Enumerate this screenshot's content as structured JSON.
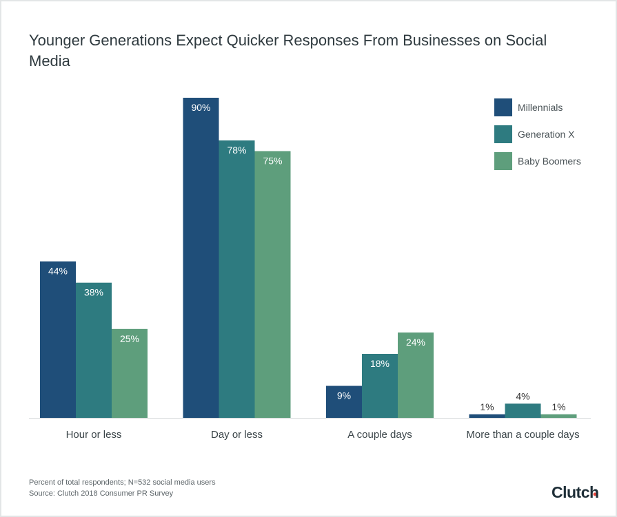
{
  "chart_data": {
    "type": "bar",
    "title": "Younger Generations Expect Quicker Responses From Businesses on Social Media",
    "categories": [
      "Hour or less",
      "Day or less",
      "A couple days",
      "More than a couple days"
    ],
    "series": [
      {
        "name": "Millennials",
        "color": "#1f4e79",
        "values": [
          44,
          90,
          9,
          1
        ]
      },
      {
        "name": "Generation X",
        "color": "#2e7b80",
        "values": [
          38,
          78,
          18,
          4
        ]
      },
      {
        "name": "Baby Boomers",
        "color": "#5e9e7c",
        "values": [
          25,
          75,
          24,
          1
        ]
      }
    ],
    "value_suffix": "%",
    "ylim": [
      0,
      90
    ],
    "grid": false,
    "legend": "top-right",
    "notes": [
      "Percent of total respondents; N=532 social media users",
      "Source: Clutch 2018 Consumer PR Survey"
    ]
  },
  "brand": {
    "logo": "Clutch",
    "logo_dot_color": "#e8463c"
  }
}
